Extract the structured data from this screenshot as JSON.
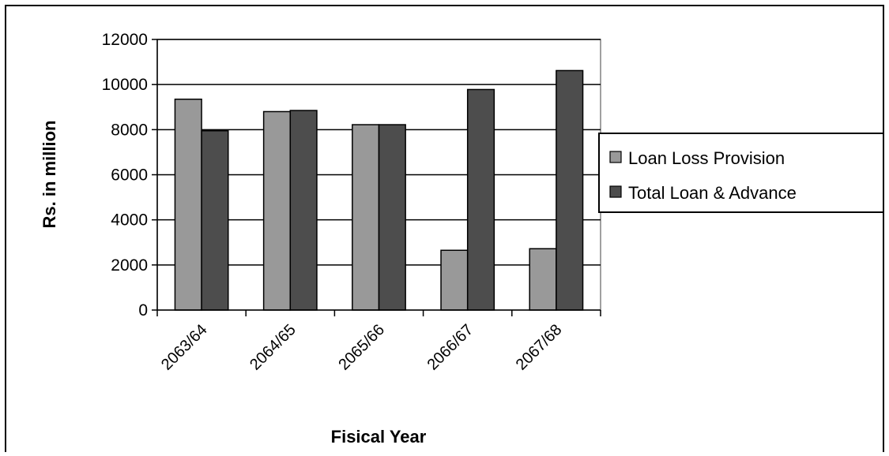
{
  "chart_data": {
    "type": "bar",
    "categories": [
      "2063/64",
      "2064/65",
      "2065/66",
      "2066/67",
      "2067/68"
    ],
    "series": [
      {
        "name": "Loan Loss Provision",
        "values": [
          9350,
          8800,
          8220,
          2650,
          2720
        ],
        "color": "#999999"
      },
      {
        "name": "Total Loan & Advance",
        "values": [
          7950,
          8850,
          8220,
          9780,
          10620
        ],
        "color": "#4d4d4d"
      }
    ],
    "title": "",
    "xlabel": "Fisical Year",
    "ylabel": "Rs. in million",
    "ylim": [
      0,
      12000
    ],
    "yticks": [
      0,
      2000,
      4000,
      6000,
      8000,
      10000,
      12000
    ],
    "grid": true,
    "legend_position": "right"
  }
}
